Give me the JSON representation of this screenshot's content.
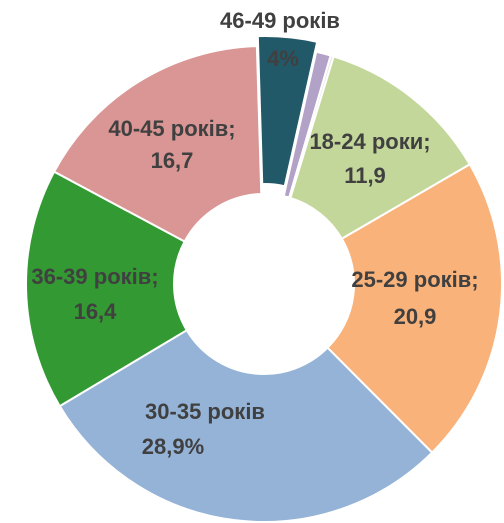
{
  "chart_data": {
    "type": "donut",
    "categories": [
      "18-24 роки;",
      "25-29 років;",
      "30-35 років",
      "36-39 років;",
      "40-45 років;",
      "46-49 років",
      null,
      null
    ],
    "values": [
      11.9,
      20.9,
      28.9,
      16.4,
      16.7,
      4,
      1.0,
      0.2
    ],
    "value_labels": [
      "11,9",
      "20,9",
      "28,9%",
      "16,4",
      "16,7",
      "4%",
      null,
      null
    ],
    "colors": [
      "#c4d79b",
      "#f9b27a",
      "#95b3d7",
      "#339933",
      "#d99694",
      "#215968",
      "#b3a2c7",
      "#e4e4e4"
    ]
  }
}
